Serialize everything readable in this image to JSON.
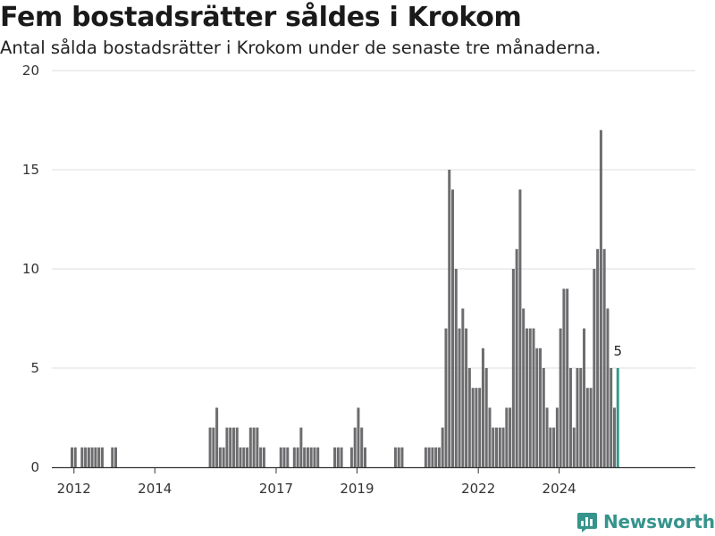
{
  "header": {
    "title": "Fem bostadsrätter såldes i Krokom",
    "subtitle": "Antal sålda bostadsrätter i Krokom under de senaste tre månaderna."
  },
  "brand": {
    "name": "Newsworthy",
    "icon": "newsworthy-chart-icon",
    "color": "#35948c"
  },
  "chart_data": {
    "type": "bar",
    "x_unit": "month",
    "start": "2011-12",
    "values": [
      1,
      1,
      0,
      1,
      1,
      1,
      1,
      1,
      1,
      1,
      0,
      0,
      1,
      1,
      0,
      0,
      0,
      0,
      0,
      0,
      0,
      0,
      0,
      0,
      0,
      0,
      0,
      0,
      0,
      0,
      0,
      0,
      0,
      0,
      0,
      0,
      0,
      0,
      0,
      0,
      0,
      2,
      2,
      3,
      1,
      1,
      2,
      2,
      2,
      2,
      1,
      1,
      1,
      2,
      2,
      2,
      1,
      1,
      0,
      0,
      0,
      0,
      1,
      1,
      1,
      0,
      1,
      1,
      2,
      1,
      1,
      1,
      1,
      1,
      0,
      0,
      0,
      0,
      1,
      1,
      1,
      0,
      0,
      1,
      2,
      3,
      2,
      1,
      0,
      0,
      0,
      0,
      0,
      0,
      0,
      0,
      1,
      1,
      1,
      0,
      0,
      0,
      0,
      0,
      0,
      1,
      1,
      1,
      1,
      1,
      2,
      7,
      15,
      14,
      10,
      7,
      8,
      7,
      5,
      4,
      4,
      4,
      6,
      5,
      3,
      2,
      2,
      2,
      2,
      3,
      3,
      10,
      11,
      14,
      8,
      7,
      7,
      7,
      6,
      6,
      5,
      3,
      2,
      2,
      3,
      7,
      9,
      9,
      5,
      2,
      5,
      5,
      7,
      4,
      4,
      10,
      11,
      17,
      11,
      8,
      5,
      3,
      5
    ],
    "highlight_last": true,
    "highlight_label": "5",
    "bar_color": "#6d6c6f",
    "highlight_color": "#36998f",
    "ylim": [
      0,
      20
    ],
    "yticks": [
      0,
      5,
      10,
      15,
      20
    ],
    "xticks": [
      "2012",
      "2014",
      "2017",
      "2019",
      "2022",
      "2024"
    ],
    "xtick_dates": [
      "2012-01",
      "2014-01",
      "2017-01",
      "2019-01",
      "2022-01",
      "2024-01"
    ],
    "grid": true,
    "title": "Fem bostadsrätter såldes i Krokom",
    "xlabel": "",
    "ylabel": ""
  }
}
